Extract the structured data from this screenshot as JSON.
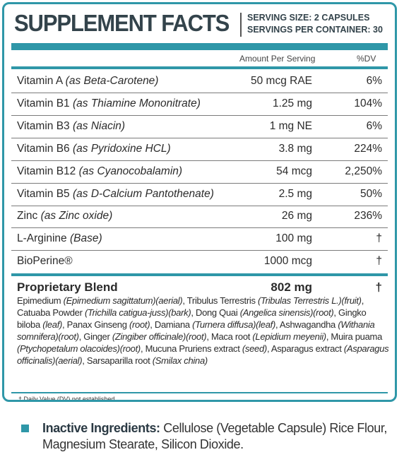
{
  "header": {
    "title": "SUPPLEMENT FACTS",
    "serving_size": "SERVING SIZE: 2 CAPSULES",
    "servings_per_container": "SERVINGS PER CONTAINER: 30"
  },
  "columns": {
    "amount": "Amount Per Serving",
    "dv": "%DV"
  },
  "rows": [
    {
      "name": "Vitamin A",
      "source": "(as Beta-Carotene)",
      "amount": "50 mcg RAE",
      "dv": "6%"
    },
    {
      "name": "Vitamin B1",
      "source": "(as Thiamine Mononitrate)",
      "amount": "1.25 mg",
      "dv": "104%"
    },
    {
      "name": "Vitamin B3",
      "source": "(as Niacin)",
      "amount": "1 mg NE",
      "dv": "6%"
    },
    {
      "name": "Vitamin B6",
      "source": "(as Pyridoxine HCL)",
      "amount": "3.8 mg",
      "dv": "224%"
    },
    {
      "name": "Vitamin B12",
      "source": "(as Cyanocobalamin)",
      "amount": "54 mcg",
      "dv": "2,250%"
    },
    {
      "name": "Vitamin B5",
      "source": "(as D-Calcium Pantothenate)",
      "amount": "2.5 mg",
      "dv": "50%"
    },
    {
      "name": "Zinc",
      "source": "(as Zinc oxide)",
      "amount": "26 mg",
      "dv": "236%"
    },
    {
      "name": "L-Arginine",
      "source": "(Base)",
      "amount": "100 mg",
      "dv": "†"
    },
    {
      "name": "BioPerine®",
      "source": "",
      "amount": "1000 mcg",
      "dv": "†"
    }
  ],
  "blend": {
    "name": "Proprietary Blend",
    "amount": "802 mg",
    "dv": "†",
    "ingredients": [
      {
        "name": "Epimedium ",
        "detail": "(Epimedium sagittatum)(aerial)"
      },
      {
        "name": ", Tribulus Terrestris ",
        "detail": "(Tribulas Terrestris L.)(fruit)"
      },
      {
        "name": ", Catuaba Powder ",
        "detail": "(Trichilla catigua-juss)(bark)"
      },
      {
        "name": ", Dong Quai ",
        "detail": "(Angelica sinensis)(root)"
      },
      {
        "name": ", Gingko biloba ",
        "detail": "(leaf)"
      },
      {
        "name": ", Panax Ginseng ",
        "detail": "(root)"
      },
      {
        "name": ", Damiana ",
        "detail": "(Turnera diffusa)(leaf)"
      },
      {
        "name": ", Ashwagandha ",
        "detail": "(Withania somnifera)(root)"
      },
      {
        "name": ", Ginger ",
        "detail": "(Zingiber officinale)(root)"
      },
      {
        "name": ", Maca root ",
        "detail": "(Lepidium meyenii)"
      },
      {
        "name": ", Muira puama ",
        "detail": "(Ptychopetalum olacoides)(root)"
      },
      {
        "name": ", Mucuna Pruriens extract ",
        "detail": "(seed)"
      },
      {
        "name": ", Asparagus extract ",
        "detail": "(Asparagus officinalis)(aerial)"
      },
      {
        "name": ", Sarsaparilla root ",
        "detail": "(Smilax china)"
      }
    ]
  },
  "footnote": "† Daily Value (DV) not established",
  "inactive": {
    "label": "Inactive Ingredients:",
    "text": " Cellulose (Vegetable Capsule) Rice Flour, Magnesium Stearate, Silicon Dioxide."
  },
  "colors": {
    "accent": "#2f97a8",
    "title": "#33434b"
  }
}
